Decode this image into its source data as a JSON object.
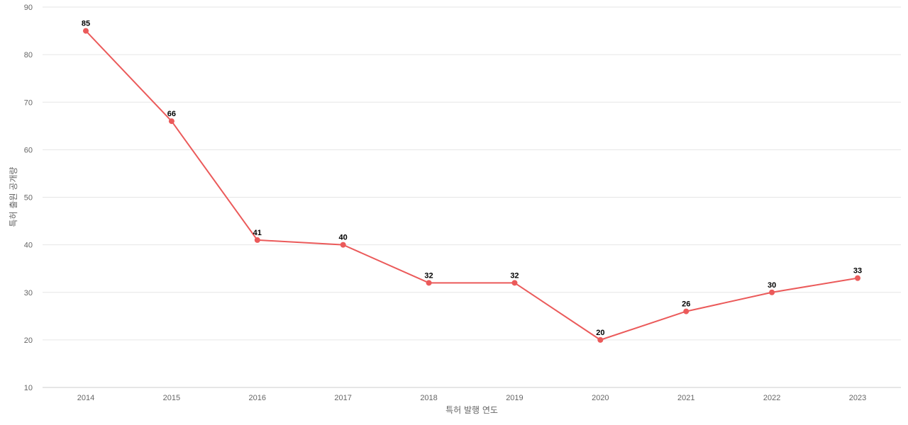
{
  "colors": {
    "series": "#eb5a5a",
    "grid": "#e6e6e6",
    "tick_text": "#666666",
    "label_text": "#000000"
  },
  "chart_data": {
    "type": "line",
    "title": "",
    "xlabel": "특허 발행 연도",
    "ylabel": "특허 출원 공개량",
    "x": [
      "2014",
      "2015",
      "2016",
      "2017",
      "2018",
      "2019",
      "2020",
      "2021",
      "2022",
      "2023"
    ],
    "series": [
      {
        "values": [
          85,
          66,
          41,
          40,
          32,
          32,
          20,
          26,
          30,
          33
        ]
      }
    ],
    "ylim": [
      10,
      90
    ],
    "yticks": [
      10,
      20,
      30,
      40,
      50,
      60,
      70,
      80,
      90
    ],
    "grid": true,
    "data_labels": true,
    "legend": "none"
  }
}
